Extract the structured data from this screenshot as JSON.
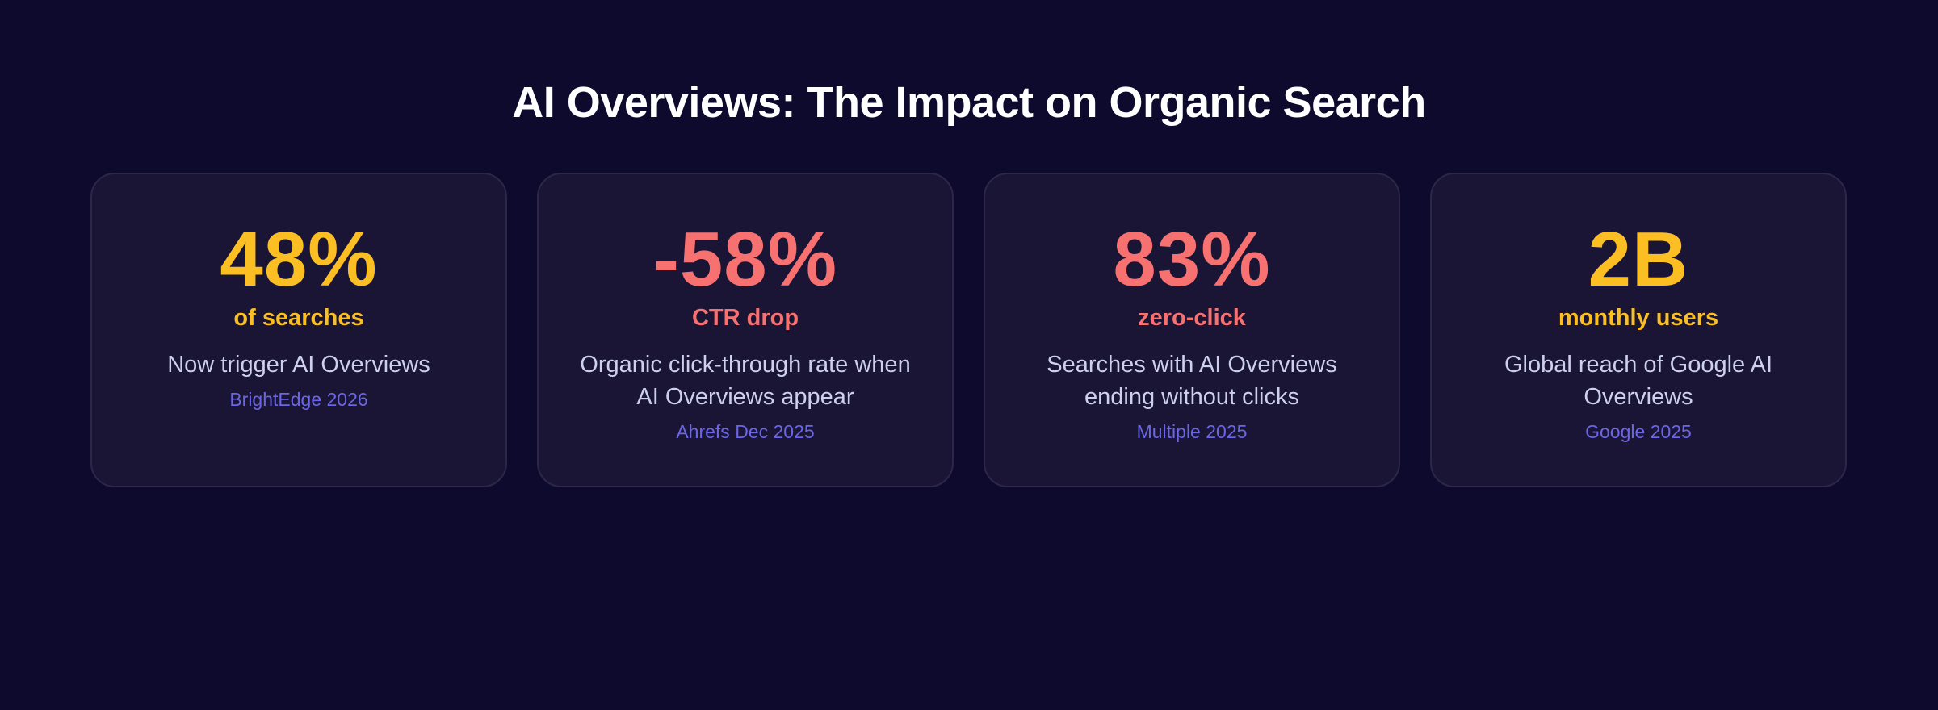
{
  "title": "AI Overviews: The Impact on Organic Search",
  "colors": {
    "background": "#0e0a2d",
    "card": "#1a1535",
    "yellow": "#fbbf24",
    "red": "#f87171",
    "description": "#cdd0ec",
    "source": "#6b66e6"
  },
  "cards": [
    {
      "stat": "48%",
      "unit": "of searches",
      "description": "Now trigger AI Overviews",
      "source": "BrightEdge 2026",
      "accent": "yellow"
    },
    {
      "stat": "-58%",
      "unit": "CTR drop",
      "description": "Organic click-through rate when AI Overviews appear",
      "source": "Ahrefs Dec 2025",
      "accent": "red"
    },
    {
      "stat": "83%",
      "unit": "zero-click",
      "description": "Searches with AI Overviews ending without clicks",
      "source": "Multiple 2025",
      "accent": "red"
    },
    {
      "stat": "2B",
      "unit": "monthly users",
      "description": "Global reach of Google AI Overviews",
      "source": "Google 2025",
      "accent": "yellow"
    }
  ]
}
